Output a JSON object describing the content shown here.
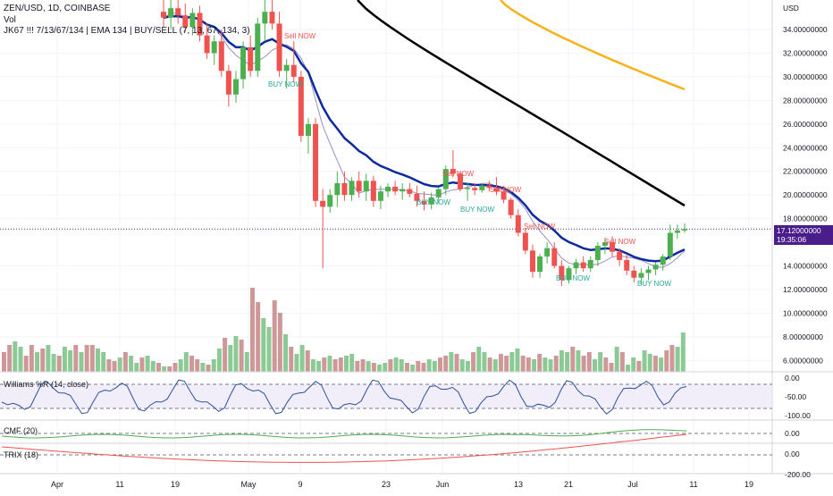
{
  "header": {
    "symbol_line": "ZEN/USD, 1D, COINBASE",
    "vol_label": "Vol",
    "indicator_line": "JK67 !!! 7/13/67/134 | EMA 134 | BUY/SELL (7, 13, 67, 134, 3)"
  },
  "price_axis": {
    "currency": "USD",
    "labels": [
      "34.00000000",
      "32.00000000",
      "30.00000000",
      "28.00000000",
      "26.00000000",
      "24.00000000",
      "22.00000000",
      "20.00000000",
      "18.00000000",
      "14.00000000",
      "12.00000000",
      "10.00000000",
      "8.00000000",
      "6.00000000"
    ],
    "current_price": "17.12000000",
    "countdown": "19:35:06"
  },
  "time_axis": {
    "labels": [
      "Apr",
      "11",
      "19",
      "May",
      "9",
      "23",
      "Jun",
      "13",
      "21",
      "Jul",
      "11",
      "19"
    ]
  },
  "panes": {
    "williams": {
      "label": "Williams %R (14, close)",
      "axis": [
        "0.00",
        "-50.00",
        "-100.00"
      ]
    },
    "cmf": {
      "label": "CMF (20)",
      "axis": [
        "0.00"
      ]
    },
    "trix": {
      "label": "TRIX (18)",
      "axis": [
        "0.00",
        "-200.00"
      ]
    }
  },
  "signals": {
    "buy": "BUY NOW",
    "sell": "Sell NOW",
    "sell_alt": "Sell NOW"
  },
  "colors": {
    "up": "#26a69a",
    "up_candle": "#4caf50",
    "down": "#ef5350",
    "ema_blue": "#0d2a9e",
    "ema_black": "#000000",
    "ema_orange": "#f7b21b",
    "thin_line": "#9c8fc8",
    "price_tag": "#4a1e8a",
    "williams_line": "#2a4fa0",
    "cmf_line": "#4caf50",
    "trix_line": "#ef5350"
  },
  "chart_data": {
    "type": "candlestick",
    "title": "ZEN/USD, 1D, COINBASE",
    "ylabel": "USD",
    "ylim": [
      5,
      36
    ],
    "x_ticks": [
      "Apr",
      "11",
      "19",
      "May",
      "9",
      "23",
      "Jun",
      "13",
      "21",
      "Jul",
      "11",
      "19"
    ],
    "last_price": 17.12,
    "candles": [
      {
        "o": 35.5,
        "h": 36.5,
        "l": 34.2,
        "c": 35.0
      },
      {
        "o": 35.0,
        "h": 36.5,
        "l": 34.0,
        "c": 35.8
      },
      {
        "o": 35.8,
        "h": 36.5,
        "l": 34.5,
        "c": 35.2
      },
      {
        "o": 35.2,
        "h": 36.2,
        "l": 33.8,
        "c": 34.2
      },
      {
        "o": 34.2,
        "h": 35.8,
        "l": 33.5,
        "c": 35.4
      },
      {
        "o": 35.4,
        "h": 36.0,
        "l": 33.0,
        "c": 33.5
      },
      {
        "o": 33.5,
        "h": 34.5,
        "l": 31.5,
        "c": 32.0
      },
      {
        "o": 32.0,
        "h": 33.5,
        "l": 31.0,
        "c": 33.0
      },
      {
        "o": 33.0,
        "h": 34.0,
        "l": 30.0,
        "c": 30.5
      },
      {
        "o": 30.5,
        "h": 31.0,
        "l": 27.5,
        "c": 28.5
      },
      {
        "o": 28.5,
        "h": 30.5,
        "l": 27.8,
        "c": 29.8
      },
      {
        "o": 29.8,
        "h": 33.0,
        "l": 29.0,
        "c": 32.5
      },
      {
        "o": 32.5,
        "h": 33.5,
        "l": 30.0,
        "c": 30.5
      },
      {
        "o": 30.5,
        "h": 35.0,
        "l": 30.0,
        "c": 34.5
      },
      {
        "o": 34.5,
        "h": 36.5,
        "l": 33.0,
        "c": 35.5
      },
      {
        "o": 35.5,
        "h": 36.8,
        "l": 34.0,
        "c": 34.5
      },
      {
        "o": 34.5,
        "h": 35.5,
        "l": 30.0,
        "c": 30.5
      },
      {
        "o": 30.5,
        "h": 31.5,
        "l": 29.0,
        "c": 31.0
      },
      {
        "o": 31.0,
        "h": 33.0,
        "l": 29.5,
        "c": 30.0
      },
      {
        "o": 30.0,
        "h": 30.5,
        "l": 24.5,
        "c": 25.0
      },
      {
        "o": 25.0,
        "h": 26.5,
        "l": 23.5,
        "c": 26.0
      },
      {
        "o": 26.0,
        "h": 26.5,
        "l": 19.0,
        "c": 19.5
      },
      {
        "o": 19.5,
        "h": 20.5,
        "l": 13.8,
        "c": 19.0
      },
      {
        "o": 19.0,
        "h": 20.5,
        "l": 18.5,
        "c": 20.0
      },
      {
        "o": 20.0,
        "h": 22.0,
        "l": 19.0,
        "c": 21.0
      },
      {
        "o": 21.0,
        "h": 22.0,
        "l": 19.5,
        "c": 20.0
      },
      {
        "o": 20.0,
        "h": 21.5,
        "l": 19.5,
        "c": 21.2
      },
      {
        "o": 21.2,
        "h": 22.0,
        "l": 19.8,
        "c": 20.3
      },
      {
        "o": 20.3,
        "h": 21.8,
        "l": 19.5,
        "c": 21.2
      },
      {
        "o": 21.2,
        "h": 21.6,
        "l": 19.0,
        "c": 19.5
      },
      {
        "o": 19.5,
        "h": 20.8,
        "l": 18.8,
        "c": 20.3
      },
      {
        "o": 20.3,
        "h": 21.0,
        "l": 19.8,
        "c": 20.7
      },
      {
        "o": 20.7,
        "h": 21.2,
        "l": 20.0,
        "c": 20.3
      },
      {
        "o": 20.3,
        "h": 21.0,
        "l": 19.6,
        "c": 20.5
      },
      {
        "o": 20.5,
        "h": 21.0,
        "l": 19.8,
        "c": 20.1
      },
      {
        "o": 20.1,
        "h": 20.8,
        "l": 19.0,
        "c": 19.5
      },
      {
        "o": 19.5,
        "h": 20.3,
        "l": 18.7,
        "c": 19.2
      },
      {
        "o": 19.2,
        "h": 20.2,
        "l": 18.8,
        "c": 19.8
      },
      {
        "o": 19.8,
        "h": 20.6,
        "l": 19.3,
        "c": 20.5
      },
      {
        "o": 20.5,
        "h": 22.5,
        "l": 20.0,
        "c": 22.2
      },
      {
        "o": 22.2,
        "h": 23.8,
        "l": 21.5,
        "c": 21.8
      },
      {
        "o": 21.8,
        "h": 22.0,
        "l": 20.3,
        "c": 20.5
      },
      {
        "o": 20.5,
        "h": 21.0,
        "l": 19.5,
        "c": 20.6
      },
      {
        "o": 20.6,
        "h": 21.0,
        "l": 20.0,
        "c": 20.4
      },
      {
        "o": 20.4,
        "h": 21.0,
        "l": 20.2,
        "c": 20.8
      },
      {
        "o": 20.8,
        "h": 21.2,
        "l": 20.3,
        "c": 20.6
      },
      {
        "o": 20.6,
        "h": 21.5,
        "l": 20.0,
        "c": 20.3
      },
      {
        "o": 20.3,
        "h": 20.8,
        "l": 19.3,
        "c": 19.6
      },
      {
        "o": 19.6,
        "h": 19.8,
        "l": 18.0,
        "c": 18.3
      },
      {
        "o": 18.3,
        "h": 18.8,
        "l": 16.5,
        "c": 16.8
      },
      {
        "o": 16.8,
        "h": 17.2,
        "l": 15.0,
        "c": 15.3
      },
      {
        "o": 15.3,
        "h": 15.8,
        "l": 13.0,
        "c": 13.5
      },
      {
        "o": 13.5,
        "h": 15.0,
        "l": 13.0,
        "c": 14.8
      },
      {
        "o": 14.8,
        "h": 16.0,
        "l": 14.2,
        "c": 15.5
      },
      {
        "o": 15.5,
        "h": 16.0,
        "l": 13.8,
        "c": 14.0
      },
      {
        "o": 14.0,
        "h": 14.5,
        "l": 12.3,
        "c": 12.8
      },
      {
        "o": 12.8,
        "h": 14.0,
        "l": 12.5,
        "c": 13.8
      },
      {
        "o": 13.8,
        "h": 14.6,
        "l": 13.3,
        "c": 14.3
      },
      {
        "o": 14.3,
        "h": 14.8,
        "l": 13.5,
        "c": 13.8
      },
      {
        "o": 13.8,
        "h": 14.8,
        "l": 13.5,
        "c": 14.5
      },
      {
        "o": 14.5,
        "h": 16.0,
        "l": 14.0,
        "c": 15.7
      },
      {
        "o": 15.7,
        "h": 16.4,
        "l": 15.0,
        "c": 16.0
      },
      {
        "o": 16.0,
        "h": 16.5,
        "l": 14.8,
        "c": 15.2
      },
      {
        "o": 15.2,
        "h": 15.5,
        "l": 14.0,
        "c": 14.5
      },
      {
        "o": 14.5,
        "h": 15.0,
        "l": 13.2,
        "c": 13.6
      },
      {
        "o": 13.6,
        "h": 14.0,
        "l": 12.6,
        "c": 13.0
      },
      {
        "o": 13.0,
        "h": 13.8,
        "l": 12.4,
        "c": 13.4
      },
      {
        "o": 13.4,
        "h": 14.0,
        "l": 12.8,
        "c": 13.7
      },
      {
        "o": 13.7,
        "h": 14.3,
        "l": 13.2,
        "c": 14.1
      },
      {
        "o": 14.1,
        "h": 15.0,
        "l": 13.6,
        "c": 14.8
      },
      {
        "o": 14.8,
        "h": 17.5,
        "l": 14.5,
        "c": 16.8
      },
      {
        "o": 16.8,
        "h": 17.5,
        "l": 16.3,
        "c": 17.0
      },
      {
        "o": 17.0,
        "h": 17.6,
        "l": 16.8,
        "c": 17.12
      }
    ]
  }
}
